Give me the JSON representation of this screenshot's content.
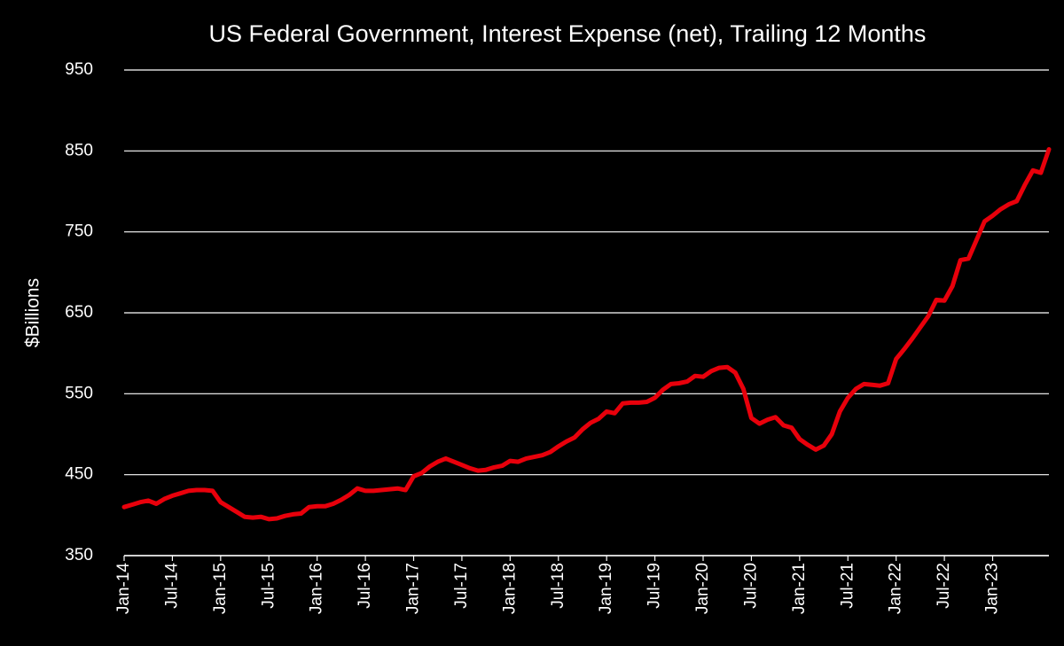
{
  "chart_data": {
    "type": "line",
    "title": "US Federal Government, Interest Expense (net), Trailing 12 Months",
    "y_label": "$Billions",
    "categories": [
      "Jan-14",
      null,
      null,
      null,
      null,
      null,
      "Jul-14",
      null,
      null,
      null,
      null,
      null,
      "Jan-15",
      null,
      null,
      null,
      null,
      null,
      "Jul-15",
      null,
      null,
      null,
      null,
      null,
      "Jan-16",
      null,
      null,
      null,
      null,
      null,
      "Jul-16",
      null,
      null,
      null,
      null,
      null,
      "Jan-17",
      null,
      null,
      null,
      null,
      null,
      "Jul-17",
      null,
      null,
      null,
      null,
      null,
      "Jan-18",
      null,
      null,
      null,
      null,
      null,
      "Jul-18",
      null,
      null,
      null,
      null,
      null,
      "Jan-19",
      null,
      null,
      null,
      null,
      null,
      "Jul-19",
      null,
      null,
      null,
      null,
      null,
      "Jan-20",
      null,
      null,
      null,
      null,
      null,
      "Jul-20",
      null,
      null,
      null,
      null,
      null,
      "Jan-21",
      null,
      null,
      null,
      null,
      null,
      "Jul-21",
      null,
      null,
      null,
      null,
      null,
      "Jan-22",
      null,
      null,
      null,
      null,
      null,
      "Jul-22",
      null,
      null,
      null,
      null,
      null,
      "Jan-23",
      null,
      null,
      null,
      null,
      null,
      null,
      null
    ],
    "series": [
      {
        "name": "Interest Expense (net)",
        "color": "#e8000b",
        "values": [
          410,
          413,
          416,
          418,
          414,
          420,
          424,
          427,
          430,
          431,
          431,
          430,
          416,
          410,
          404,
          398,
          397,
          398,
          395,
          396,
          399,
          401,
          402,
          410,
          411,
          411,
          414,
          419,
          425,
          433,
          430,
          430,
          431,
          432,
          433,
          431,
          448,
          452,
          460,
          466,
          470,
          466,
          462,
          458,
          455,
          456,
          459,
          461,
          467,
          466,
          470,
          472,
          474,
          478,
          485,
          491,
          496,
          506,
          514,
          519,
          528,
          526,
          538,
          539,
          539,
          540,
          545,
          555,
          562,
          563,
          565,
          572,
          571,
          578,
          582,
          583,
          576,
          556,
          520,
          513,
          518,
          521,
          511,
          508,
          494,
          487,
          481,
          486,
          500,
          528,
          545,
          556,
          562,
          561,
          560,
          563,
          593,
          605,
          618,
          632,
          646,
          666,
          665,
          683,
          715,
          717,
          740,
          763,
          770,
          778,
          784,
          788,
          808,
          826,
          823,
          852
        ]
      }
    ],
    "ylim": [
      350,
      950
    ],
    "yticks": [
      350,
      450,
      550,
      650,
      750,
      850,
      950
    ],
    "grid": true
  }
}
